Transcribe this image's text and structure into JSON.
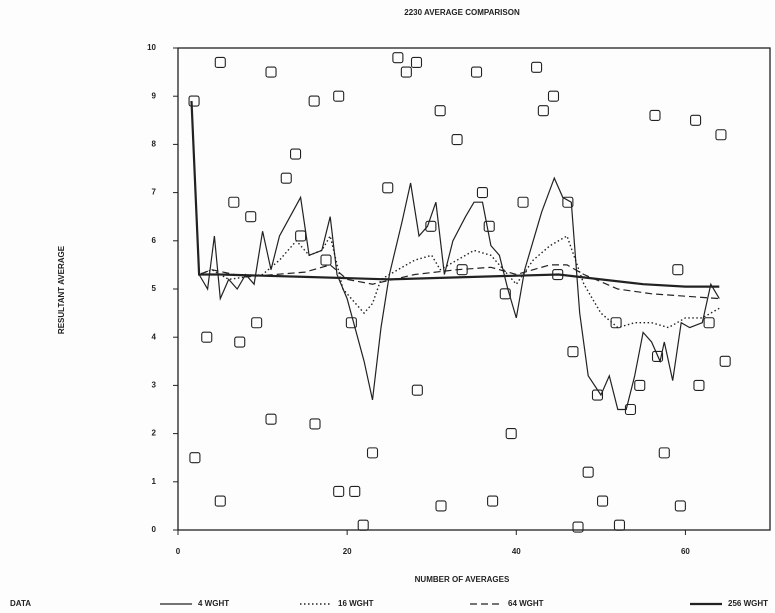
{
  "chart_data": {
    "type": "scatter-line",
    "title": "2230 AVERAGE COMPARISON",
    "x_label": "NUMBER OF AVERAGES",
    "y_label": "RESULTANT AVERAGE",
    "xlim": [
      0,
      70
    ],
    "ylim": [
      0,
      10
    ],
    "xticks": [
      0,
      20,
      40,
      60
    ],
    "yticks": [
      0,
      1,
      2,
      3,
      4,
      5,
      6,
      7,
      8,
      9,
      10
    ],
    "series": [
      {
        "name": "DATA",
        "kind": "points",
        "color": "#222",
        "x": [
          1.9,
          2,
          3.4,
          5,
          5,
          6.6,
          7.3,
          8.6,
          9.3,
          11,
          11,
          12.8,
          13.9,
          14.5,
          16.1,
          16.2,
          17.5,
          19,
          19,
          20.5,
          20.9,
          21.9,
          23,
          24.8,
          26,
          27,
          28.2,
          28.3,
          29.9,
          31,
          31.1,
          33,
          33.6,
          35.3,
          36,
          36.8,
          37.2,
          38.7,
          39.4,
          40.8,
          42.4,
          43.2,
          44.4,
          44.9,
          46.1,
          46.7,
          47.3,
          48.5,
          49.6,
          50.2,
          51.8,
          52.2,
          53.5,
          54.6,
          56.4,
          56.7,
          57.5,
          59.1,
          59.4,
          61.2,
          61.6,
          62.8,
          64.2,
          64.7
        ],
        "values": [
          8.9,
          1.5,
          4.0,
          9.7,
          0.6,
          6.8,
          3.9,
          6.5,
          4.3,
          9.5,
          2.3,
          7.3,
          7.8,
          6.1,
          8.9,
          2.2,
          5.6,
          9.0,
          0.8,
          4.3,
          0.8,
          0.1,
          1.6,
          7.1,
          9.8,
          9.5,
          9.7,
          2.9,
          6.3,
          8.7,
          0.5,
          8.1,
          5.4,
          9.5,
          7.0,
          6.3,
          0.6,
          4.9,
          2.0,
          6.8,
          9.6,
          8.7,
          9.0,
          5.3,
          6.8,
          3.7,
          0.06,
          1.2,
          2.8,
          0.6,
          4.3,
          0.1,
          2.5,
          3.0,
          8.6,
          3.6,
          1.6,
          5.4,
          0.5,
          8.5,
          3.0,
          4.3,
          8.2,
          3.5
        ]
      },
      {
        "name": "4 WGHT",
        "kind": "line",
        "style": "solid",
        "width": 1.2,
        "color": "#222",
        "x": [
          1.6,
          2.5,
          3.5,
          4.3,
          5,
          6,
          7,
          8,
          9,
          10,
          11,
          12,
          14.5,
          15.5,
          17,
          18,
          18.8,
          20,
          22,
          23,
          24,
          25,
          26.5,
          27.5,
          28.5,
          29.5,
          30.5,
          31.5,
          32.5,
          34,
          35,
          36,
          37,
          38,
          39,
          40,
          41,
          43,
          44.5,
          45.5,
          46.5,
          47.5,
          48.5,
          50,
          51,
          52,
          53,
          54,
          55,
          56,
          57,
          57.5,
          58.5,
          59.5,
          60.5,
          62,
          63,
          64
        ],
        "values": [
          8.9,
          5.3,
          5.0,
          6.1,
          4.8,
          5.2,
          5.0,
          5.3,
          5.1,
          6.2,
          5.4,
          6.1,
          6.9,
          5.7,
          5.8,
          6.5,
          5.3,
          4.8,
          3.5,
          2.7,
          4.2,
          5.3,
          6.4,
          7.2,
          6.1,
          6.3,
          6.8,
          5.3,
          6.0,
          6.5,
          6.8,
          6.8,
          5.9,
          5.7,
          5.0,
          4.4,
          5.4,
          6.6,
          7.3,
          6.9,
          6.8,
          4.5,
          3.2,
          2.8,
          3.2,
          2.5,
          2.5,
          3.2,
          4.1,
          3.9,
          3.5,
          3.9,
          3.1,
          4.3,
          4.2,
          4.3,
          5.1,
          4.8
        ]
      },
      {
        "name": "16 WGHT",
        "kind": "line",
        "style": "dotted",
        "width": 1.4,
        "color": "#222",
        "x": [
          1.6,
          2.5,
          4,
          6,
          10,
          12,
          14,
          15.5,
          17,
          18,
          19.5,
          21,
          22,
          23,
          24,
          26,
          28,
          30,
          31,
          33,
          35,
          37,
          39,
          40,
          42,
          44,
          46,
          47,
          48,
          50,
          52,
          54,
          56,
          58,
          60,
          62,
          64
        ],
        "values": [
          8.9,
          5.3,
          5.4,
          5.2,
          5.3,
          5.6,
          6.0,
          5.7,
          5.8,
          6.1,
          5.0,
          4.7,
          4.5,
          4.7,
          5.2,
          5.4,
          5.6,
          5.7,
          5.4,
          5.6,
          5.8,
          5.7,
          5.3,
          5.1,
          5.6,
          5.9,
          6.1,
          5.6,
          5.1,
          4.5,
          4.2,
          4.3,
          4.3,
          4.2,
          4.4,
          4.4,
          4.6
        ]
      },
      {
        "name": "64 WGHT",
        "kind": "line",
        "style": "dashed",
        "width": 1.2,
        "color": "#222",
        "x": [
          1.6,
          2.5,
          4,
          8,
          15,
          18,
          20,
          23,
          28,
          33,
          37,
          40,
          44,
          46,
          48,
          52,
          56,
          60,
          64
        ],
        "values": [
          8.9,
          5.3,
          5.4,
          5.25,
          5.35,
          5.5,
          5.2,
          5.1,
          5.3,
          5.4,
          5.45,
          5.3,
          5.5,
          5.5,
          5.3,
          5.0,
          4.9,
          4.85,
          4.8
        ]
      },
      {
        "name": "256 WGHT",
        "kind": "line",
        "style": "solid",
        "width": 2.2,
        "color": "#222",
        "x": [
          1.6,
          2.5,
          5,
          15,
          25,
          35,
          45,
          50,
          55,
          60,
          64
        ],
        "values": [
          8.9,
          5.3,
          5.3,
          5.25,
          5.2,
          5.25,
          5.3,
          5.2,
          5.1,
          5.05,
          5.05
        ]
      }
    ]
  }
}
